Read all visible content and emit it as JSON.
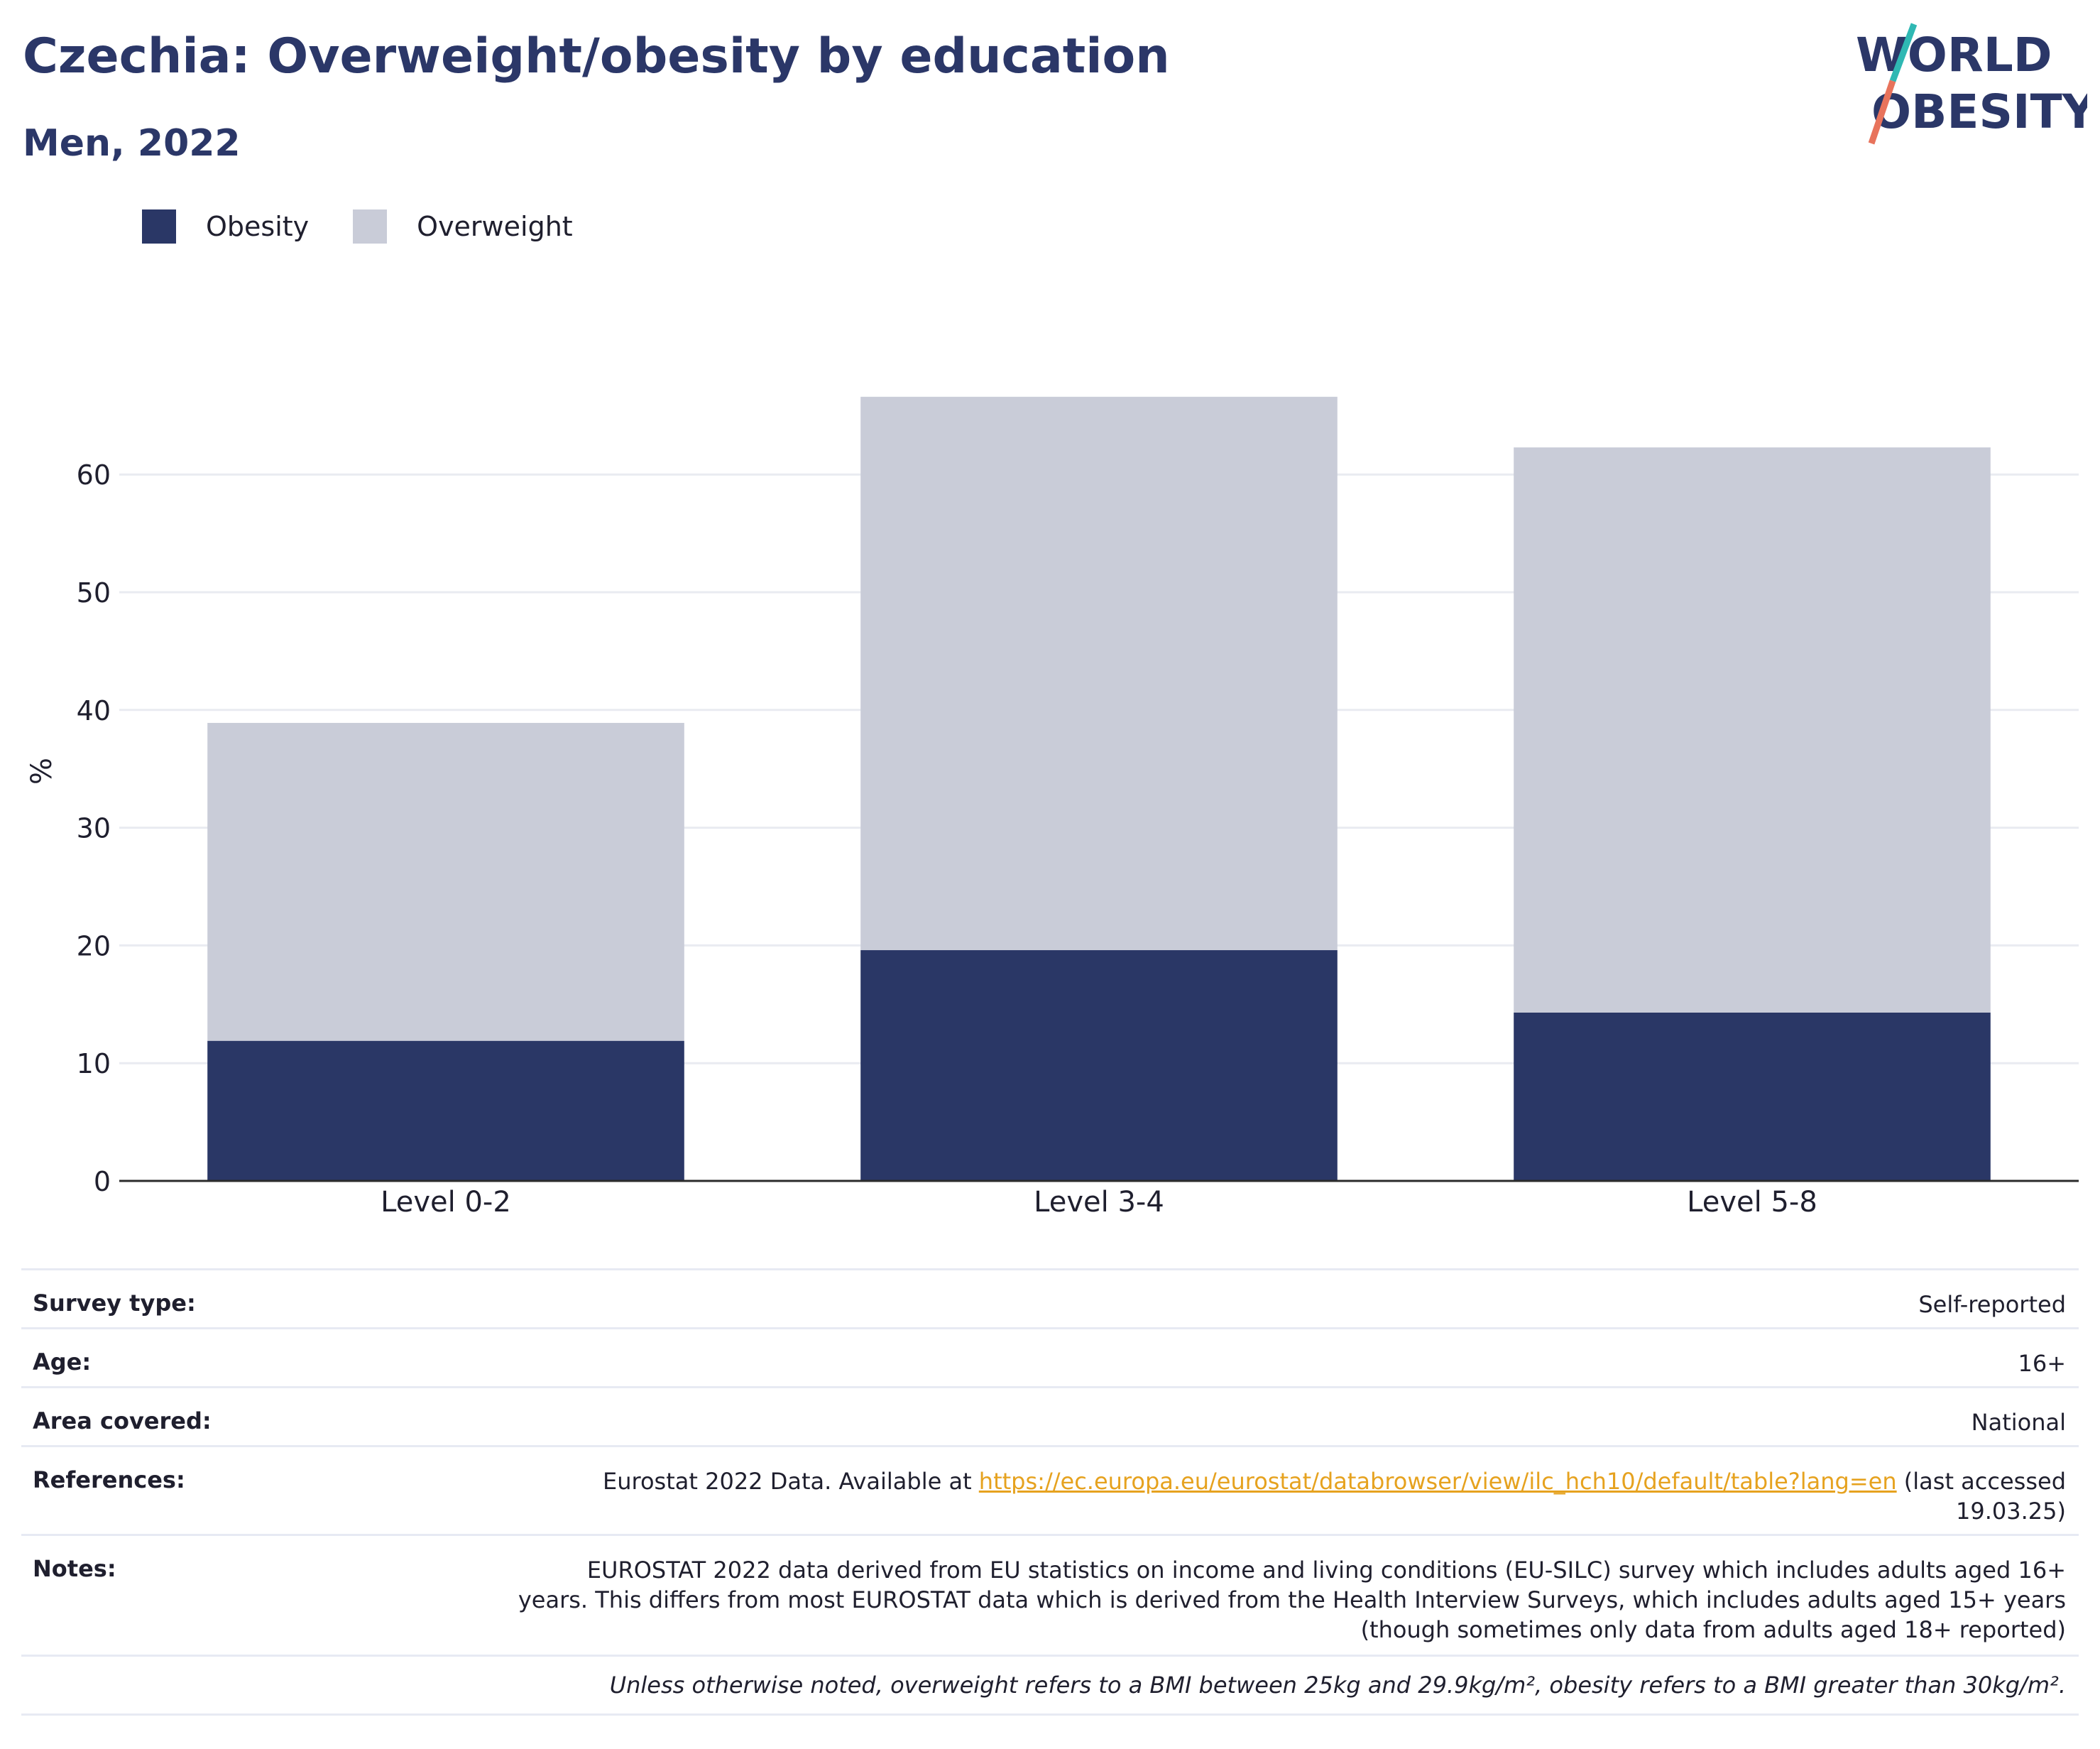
{
  "title": "Czechia: Overweight/obesity by education",
  "subtitle": "Men, 2022",
  "logo": {
    "line1": "WORLD",
    "line2": "OBESITY"
  },
  "colors": {
    "obesity": "#2a3766",
    "overweight": "#c9ccd8",
    "title": "#2b3768",
    "link": "#e6a21f",
    "logo_teal": "#2fb8b3",
    "logo_coral": "#e8735c"
  },
  "legend": [
    {
      "label": "Obesity",
      "color": "#2a3766"
    },
    {
      "label": "Overweight",
      "color": "#c9ccd8"
    }
  ],
  "chart_data": {
    "type": "bar",
    "stacked": true,
    "categories": [
      "Level 0-2",
      "Level 3-4",
      "Level 5-8"
    ],
    "series": [
      {
        "name": "Obesity",
        "values": [
          11.9,
          19.6,
          14.3
        ]
      },
      {
        "name": "Overweight",
        "values": [
          27.0,
          47.0,
          48.0
        ]
      }
    ],
    "ylabel": "%",
    "ylim": [
      0,
      70
    ],
    "yticks": [
      0,
      10,
      20,
      30,
      40,
      50,
      60
    ],
    "grid": true,
    "legend_position": "top-left"
  },
  "meta": {
    "survey_type": {
      "label": "Survey type:",
      "value": "Self-reported"
    },
    "age": {
      "label": "Age:",
      "value": "16+"
    },
    "area": {
      "label": "Area covered:",
      "value": "National"
    },
    "references": {
      "label": "References:",
      "prefix": "Eurostat 2022 Data. Available at ",
      "link": "https://ec.europa.eu/eurostat/databrowser/view/ilc_hch10/default/table?lang=en",
      "suffix": " (last accessed",
      "suffix2": "19.03.25)"
    },
    "notes": {
      "label": "Notes:",
      "line1": "EUROSTAT 2022 data derived from EU statistics on income and living conditions (EU-SILC) survey which includes adults aged 16+",
      "line2": "years. This differs from most EUROSTAT data which is derived from the Health Interview Surveys, which includes adults aged 15+ years",
      "line3": "(though sometimes only data from adults aged 18+ reported)"
    },
    "footnote": "Unless otherwise noted, overweight refers to a BMI between 25kg and 29.9kg/m², obesity refers to a BMI greater than 30kg/m²."
  }
}
